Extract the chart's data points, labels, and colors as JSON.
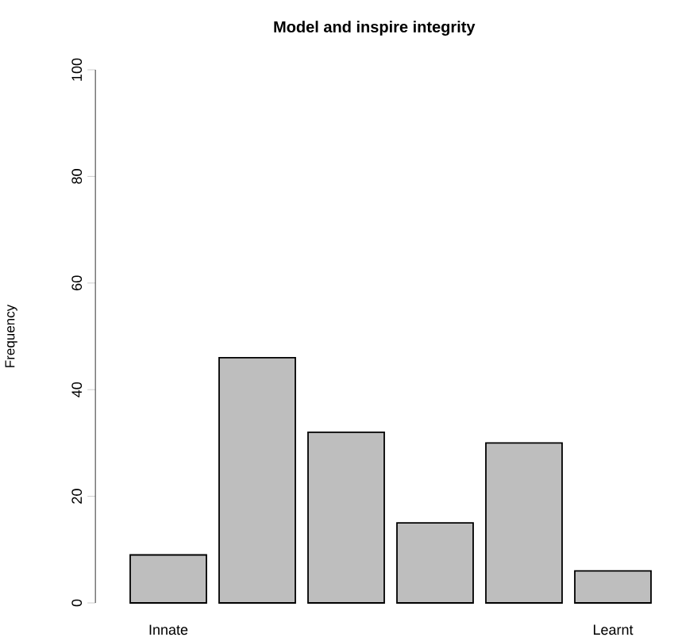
{
  "chart_data": {
    "type": "bar",
    "title": "Model and inspire integrity",
    "ylabel": "Frequency",
    "categories": [
      "Innate",
      null,
      null,
      null,
      null,
      "Learnt"
    ],
    "values": [
      9,
      46,
      32,
      15,
      30,
      6
    ],
    "color": "#bebebe",
    "ylim": [
      0,
      100
    ],
    "yticks": [
      0,
      20,
      40,
      60,
      80,
      100
    ]
  }
}
